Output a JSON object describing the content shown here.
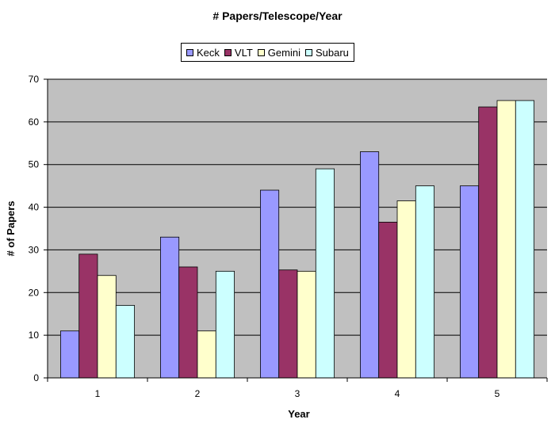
{
  "chart_data": {
    "type": "bar",
    "title": "# Papers/Telescope/Year",
    "xlabel": "Year",
    "ylabel": "# of Papers",
    "categories": [
      "1",
      "2",
      "3",
      "4",
      "5"
    ],
    "series": [
      {
        "name": "Keck",
        "color": "#9999ff",
        "values": [
          11,
          33,
          44,
          53,
          45
        ]
      },
      {
        "name": "VLT",
        "color": "#993366",
        "values": [
          29,
          26,
          25.3,
          36.5,
          63.5
        ]
      },
      {
        "name": "Gemini",
        "color": "#ffffcc",
        "values": [
          24,
          11,
          25,
          41.5,
          65
        ]
      },
      {
        "name": "Subaru",
        "color": "#ccffff",
        "values": [
          17,
          25,
          49,
          45,
          65
        ]
      }
    ],
    "ylim": [
      0,
      70
    ],
    "yticks": [
      0,
      10,
      20,
      30,
      40,
      50,
      60,
      70
    ],
    "grid": true,
    "plot_background": "#c0c0c0",
    "legend_position": "top-center"
  }
}
